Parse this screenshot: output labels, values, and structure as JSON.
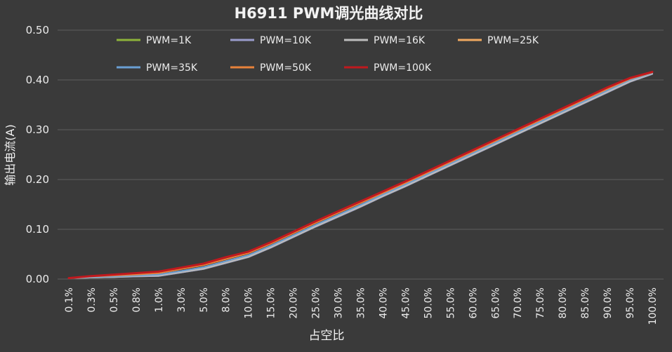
{
  "chart_data": {
    "type": "line",
    "title": "H6911 PWM调光曲线对比",
    "xlabel": "占空比",
    "ylabel": "输出电流(A)",
    "ylim": [
      0,
      0.5
    ],
    "yticks": [
      "0.00",
      "0.10",
      "0.20",
      "0.30",
      "0.40",
      "0.50"
    ],
    "grid": true,
    "legend_position": "top",
    "background": "#3a3a3a",
    "categories": [
      "0.1%",
      "0.3%",
      "0.5%",
      "0.8%",
      "1.0%",
      "3.0%",
      "5.0%",
      "8.0%",
      "10.0%",
      "15.0%",
      "20.0%",
      "25.0%",
      "30.0%",
      "35.0%",
      "40.0%",
      "45.0%",
      "50.0%",
      "55.0%",
      "60.0%",
      "65.0%",
      "70.0%",
      "75.0%",
      "80.0%",
      "85.0%",
      "90.0%",
      "95.0%",
      "100.0%"
    ],
    "series": [
      {
        "name": "PWM=1K",
        "color": "#8db33a",
        "values": [
          0.002,
          0.003,
          0.004,
          0.005,
          0.006,
          0.013,
          0.02,
          0.032,
          0.044,
          0.063,
          0.084,
          0.105,
          0.125,
          0.145,
          0.166,
          0.186,
          0.207,
          0.228,
          0.249,
          0.27,
          0.291,
          0.312,
          0.333,
          0.354,
          0.375,
          0.396,
          0.412
        ]
      },
      {
        "name": "PWM=10K",
        "color": "#9a9ccc",
        "values": [
          0.002,
          0.003,
          0.004,
          0.005,
          0.006,
          0.013,
          0.02,
          0.032,
          0.044,
          0.063,
          0.084,
          0.105,
          0.125,
          0.145,
          0.166,
          0.186,
          0.207,
          0.228,
          0.249,
          0.27,
          0.291,
          0.312,
          0.333,
          0.354,
          0.375,
          0.396,
          0.412
        ]
      },
      {
        "name": "PWM=16K",
        "color": "#bdbdbd",
        "values": [
          0.002,
          0.003,
          0.004,
          0.006,
          0.007,
          0.014,
          0.021,
          0.033,
          0.045,
          0.064,
          0.085,
          0.106,
          0.126,
          0.146,
          0.167,
          0.187,
          0.208,
          0.229,
          0.25,
          0.271,
          0.292,
          0.313,
          0.334,
          0.355,
          0.376,
          0.397,
          0.413
        ]
      },
      {
        "name": "PWM=25K",
        "color": "#f0a860",
        "values": [
          0.002,
          0.004,
          0.005,
          0.007,
          0.009,
          0.016,
          0.024,
          0.036,
          0.048,
          0.067,
          0.088,
          0.109,
          0.129,
          0.149,
          0.17,
          0.19,
          0.211,
          0.232,
          0.253,
          0.274,
          0.295,
          0.316,
          0.337,
          0.358,
          0.379,
          0.4,
          0.414
        ]
      },
      {
        "name": "PWM=35K",
        "color": "#6a9fd4",
        "values": [
          0.002,
          0.004,
          0.005,
          0.007,
          0.009,
          0.016,
          0.024,
          0.036,
          0.048,
          0.067,
          0.088,
          0.109,
          0.129,
          0.149,
          0.17,
          0.19,
          0.211,
          0.232,
          0.253,
          0.274,
          0.295,
          0.316,
          0.337,
          0.358,
          0.379,
          0.4,
          0.414
        ]
      },
      {
        "name": "PWM=50K",
        "color": "#e8823a",
        "values": [
          0.002,
          0.005,
          0.007,
          0.009,
          0.012,
          0.02,
          0.028,
          0.04,
          0.052,
          0.071,
          0.092,
          0.113,
          0.133,
          0.153,
          0.173,
          0.193,
          0.214,
          0.235,
          0.256,
          0.277,
          0.298,
          0.319,
          0.34,
          0.361,
          0.382,
          0.402,
          0.415
        ]
      },
      {
        "name": "PWM=100K",
        "color": "#c0191e",
        "values": [
          0.002,
          0.006,
          0.009,
          0.012,
          0.015,
          0.023,
          0.031,
          0.044,
          0.055,
          0.074,
          0.095,
          0.116,
          0.136,
          0.156,
          0.176,
          0.196,
          0.217,
          0.238,
          0.259,
          0.28,
          0.301,
          0.322,
          0.343,
          0.364,
          0.385,
          0.404,
          0.416
        ]
      }
    ]
  }
}
